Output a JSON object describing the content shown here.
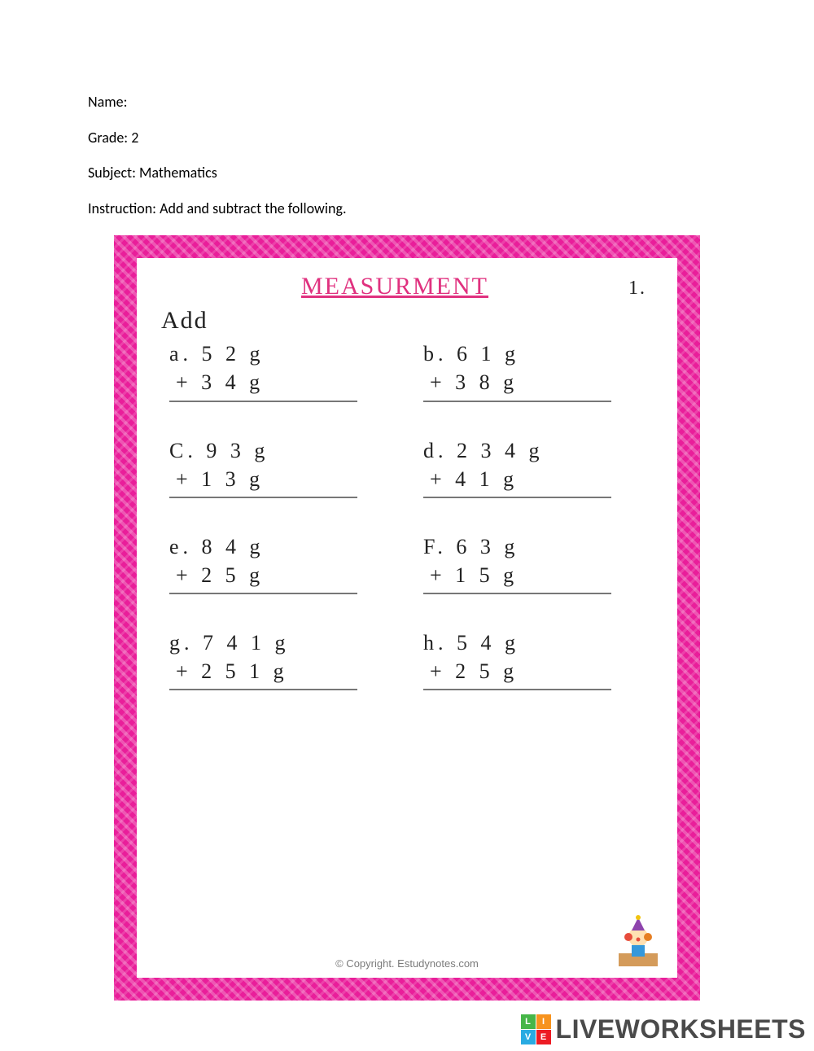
{
  "header": {
    "name_label": "Name:",
    "grade_label": "Grade:",
    "grade_value": "2",
    "subject_label": "Subject:",
    "subject_value": "Mathematics",
    "instruction_label": "Instruction:",
    "instruction_value": "Add and subtract the following."
  },
  "worksheet": {
    "title": "MEASURMENT",
    "title_color": "#e0317f",
    "page_number": "1.",
    "section_label": "Add",
    "border_color": "#e91e9a",
    "background_color": "#ffffff",
    "text_color": "#222222",
    "font_family": "Comic Sans MS",
    "rule_color": "#777777",
    "problems": [
      {
        "label": "a.",
        "top": "5 2 g",
        "bottom": "+ 3 4 g"
      },
      {
        "label": "b.",
        "top": "6 1 g",
        "bottom": "+ 3 8 g"
      },
      {
        "label": "C.",
        "top": "9 3 g",
        "bottom": "+ 1 3 g"
      },
      {
        "label": "d.",
        "top": "2 3 4 g",
        "bottom": "+ 4 1 g"
      },
      {
        "label": "e.",
        "top": "8 4 g",
        "bottom": "+ 2 5 g"
      },
      {
        "label": "F.",
        "top": "6 3 g",
        "bottom": "+ 1 5 g"
      },
      {
        "label": "g.",
        "top": "7 4 1 g",
        "bottom": "+ 2 5 1 g"
      },
      {
        "label": "h.",
        "top": "5 4 g",
        "bottom": "+ 2 5 g"
      }
    ],
    "copyright": "© Copyright. Estudynotes.com"
  },
  "watermark": {
    "badge_cells": [
      "L",
      "I",
      "V",
      "E"
    ],
    "badge_colors": [
      "#46b648",
      "#f7931e",
      "#29abe2",
      "#ed1c24"
    ],
    "text": "LIVEWORKSHEETS",
    "text_color": "#4a4a4a"
  }
}
